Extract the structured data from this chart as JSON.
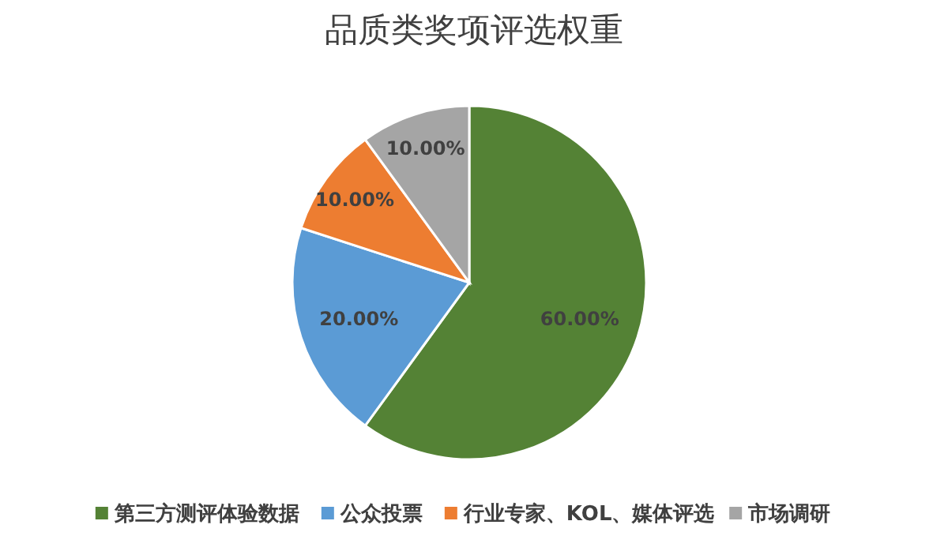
{
  "chart_data": {
    "type": "pie",
    "title": "品质类奖项评选权重",
    "categories": [
      "第三方测评体验数据",
      "公众投票",
      "行业专家、KOL、媒体评选",
      "市场调研"
    ],
    "values": [
      60,
      20,
      10,
      10
    ],
    "colors": [
      "#548235",
      "#5b9bd5",
      "#ed7d31",
      "#a5a5a5"
    ],
    "value_labels": [
      "60.00%",
      "20.00%",
      "10.00%",
      "10.00%"
    ],
    "legend": "bottom"
  }
}
